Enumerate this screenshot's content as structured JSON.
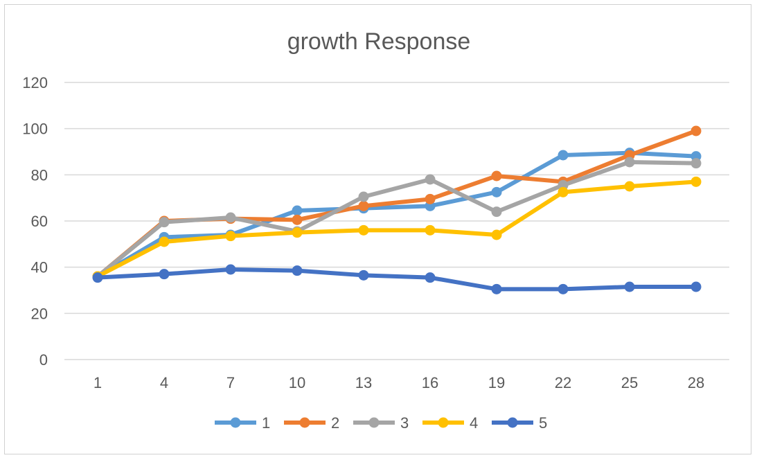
{
  "chart_data": {
    "type": "line",
    "title": "growth Response",
    "xlabel": "",
    "ylabel": "",
    "categories": [
      "1",
      "4",
      "7",
      "10",
      "13",
      "16",
      "19",
      "22",
      "25",
      "28"
    ],
    "ylim": [
      0,
      120
    ],
    "yticks": [
      "0",
      "20",
      "40",
      "60",
      "80",
      "100",
      "120"
    ],
    "grid": true,
    "legend_position": "bottom",
    "series": [
      {
        "name": "1",
        "color": "#5B9BD5",
        "values": [
          36,
          53,
          54,
          64.5,
          65.5,
          66.5,
          72.5,
          88.5,
          89.5,
          88
        ]
      },
      {
        "name": "2",
        "color": "#ED7D31",
        "values": [
          36,
          60,
          61,
          60.5,
          66.5,
          69.5,
          79.5,
          77,
          88.5,
          99
        ]
      },
      {
        "name": "3",
        "color": "#A5A5A5",
        "values": [
          36,
          59.5,
          61.5,
          55.5,
          70.5,
          78,
          64,
          75.5,
          85.5,
          85
        ]
      },
      {
        "name": "4",
        "color": "#FFC000",
        "values": [
          36,
          51,
          53.5,
          55,
          56,
          56,
          54,
          72.5,
          75,
          77
        ]
      },
      {
        "name": "5",
        "color": "#4472C4",
        "values": [
          35.5,
          37,
          39,
          38.5,
          36.5,
          35.5,
          30.5,
          30.5,
          31.5,
          31.5
        ]
      }
    ]
  }
}
